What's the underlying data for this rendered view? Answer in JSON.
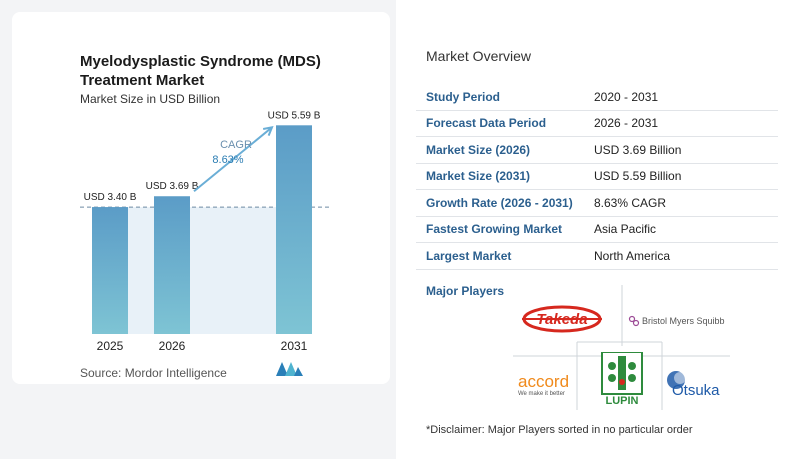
{
  "left_panel": {
    "title": "Myelodysplastic Syndrome (MDS) Treatment Market",
    "subtitle": "Market Size in USD Billion",
    "source": "Source:  Mordor Intelligence"
  },
  "chart_data": {
    "type": "bar",
    "categories": [
      "2025",
      "2026",
      "2031"
    ],
    "values": [
      3.4,
      3.69,
      5.59
    ],
    "data_labels": [
      "USD 3.40 B",
      "USD 3.69 B",
      "USD 5.59 B"
    ],
    "title": "Myelodysplastic Syndrome (MDS) Treatment Market",
    "subtitle": "Market Size in USD Billion",
    "cagr_label": "CAGR",
    "cagr_value": "8.63%",
    "ylim": [
      0,
      6.0
    ],
    "grid": false,
    "colors": {
      "bar_top": "#5b9cc7",
      "bar_bottom": "#78c1d3",
      "arrow": "#6aaed6",
      "area": "#e8f1f8"
    }
  },
  "right_panel": {
    "overview_title": "Market Overview",
    "rows": [
      {
        "label": "Study Period",
        "value": "2020 - 2031"
      },
      {
        "label": "Forecast Data Period",
        "value": "2026 - 2031"
      },
      {
        "label": "Market Size (2026)",
        "value": "USD 3.69 Billion"
      },
      {
        "label": "Market Size (2031)",
        "value": "USD 5.59 Billion"
      },
      {
        "label": "Growth Rate (2026 - 2031)",
        "value": "8.63% CAGR"
      },
      {
        "label": "Fastest Growing Market",
        "value": "Asia Pacific"
      },
      {
        "label": "Largest Market",
        "value": "North America"
      }
    ],
    "players_title": "Major Players",
    "players": {
      "takeda": "Takeda",
      "bms": "Bristol Myers Squibb",
      "accord": "accord",
      "accord_tagline": "We make it better",
      "lupin": "LUPIN",
      "otsuka": "Otsuka"
    },
    "disclaimer": "*Disclaimer: Major Players sorted in no particular order"
  }
}
